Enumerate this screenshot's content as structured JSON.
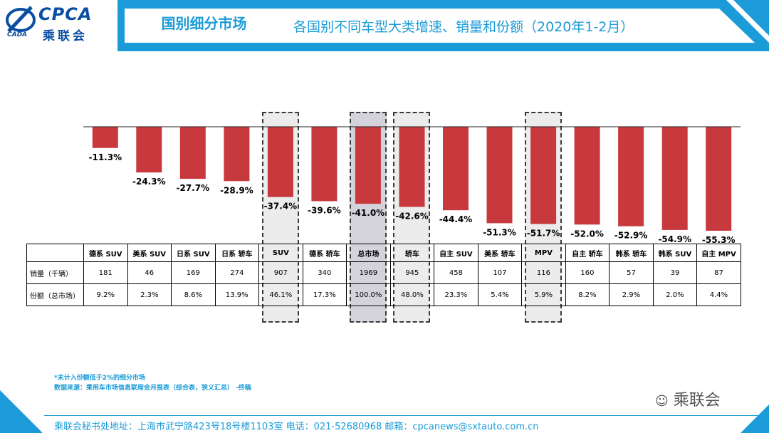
{
  "header": {
    "logo_en": "CPCA",
    "logo_cn": "乘联会",
    "logo_small": "CADA",
    "section": "国别细分市场",
    "title": "各国别不同车型大类增速、销量和份额（2020年1-2月）"
  },
  "colors": {
    "bar": "#c8393e",
    "accent": "#1b9bd7",
    "highlight_fill": "#ececec",
    "highlight_dark": "#d4d3dc"
  },
  "chart_data": {
    "type": "bar",
    "categories": [
      "德系 SUV",
      "美系 SUV",
      "日系 SUV",
      "日系 轿车",
      "SUV",
      "德系 轿车",
      "总市场",
      "轿车",
      "自主 SUV",
      "美系 轿车",
      "MPV",
      "自主 轿车",
      "韩系 轿车",
      "韩系 SUV",
      "自主 MPV"
    ],
    "values": [
      -11.3,
      -24.3,
      -27.7,
      -28.9,
      -37.4,
      -39.6,
      -41.0,
      -42.6,
      -44.4,
      -51.3,
      -51.7,
      -52.0,
      -52.9,
      -54.9,
      -55.3
    ],
    "value_labels": [
      "-11.3%",
      "-24.3%",
      "-27.7%",
      "-28.9%",
      "-37.4%",
      "-39.6%",
      "-41.0%",
      "-42.6%",
      "-44.4%",
      "-51.3%",
      "-51.7%",
      "-52.0%",
      "-52.9%",
      "-54.9%",
      "-55.3%"
    ],
    "highlighted": [
      "SUV",
      "总市场",
      "轿车",
      "MPV"
    ],
    "ylim": [
      -60,
      0
    ]
  },
  "table": {
    "row_labels": [
      "销量（千辆）",
      "份额（总市场）"
    ],
    "sales": [
      "181",
      "46",
      "169",
      "274",
      "907",
      "340",
      "1969",
      "945",
      "458",
      "107",
      "116",
      "160",
      "57",
      "39",
      "87"
    ],
    "share": [
      "9.2%",
      "2.3%",
      "8.6%",
      "13.9%",
      "46.1%",
      "17.3%",
      "100.0%",
      "48.0%",
      "23.3%",
      "5.4%",
      "5.9%",
      "8.2%",
      "2.9%",
      "2.0%",
      "4.4%"
    ]
  },
  "note": {
    "line1": "*未计入份额低于2%的细分市场",
    "line2": "数据来源：乘用车市场信息联席会月报表（综合表，狭义汇总）   -终稿"
  },
  "watermark": "乘联会",
  "footer": "乘联会秘书处地址：上海市武宁路423号18号楼1103室  电话：021-52680968   邮箱：cpcanews@sxtauto.com.cn"
}
